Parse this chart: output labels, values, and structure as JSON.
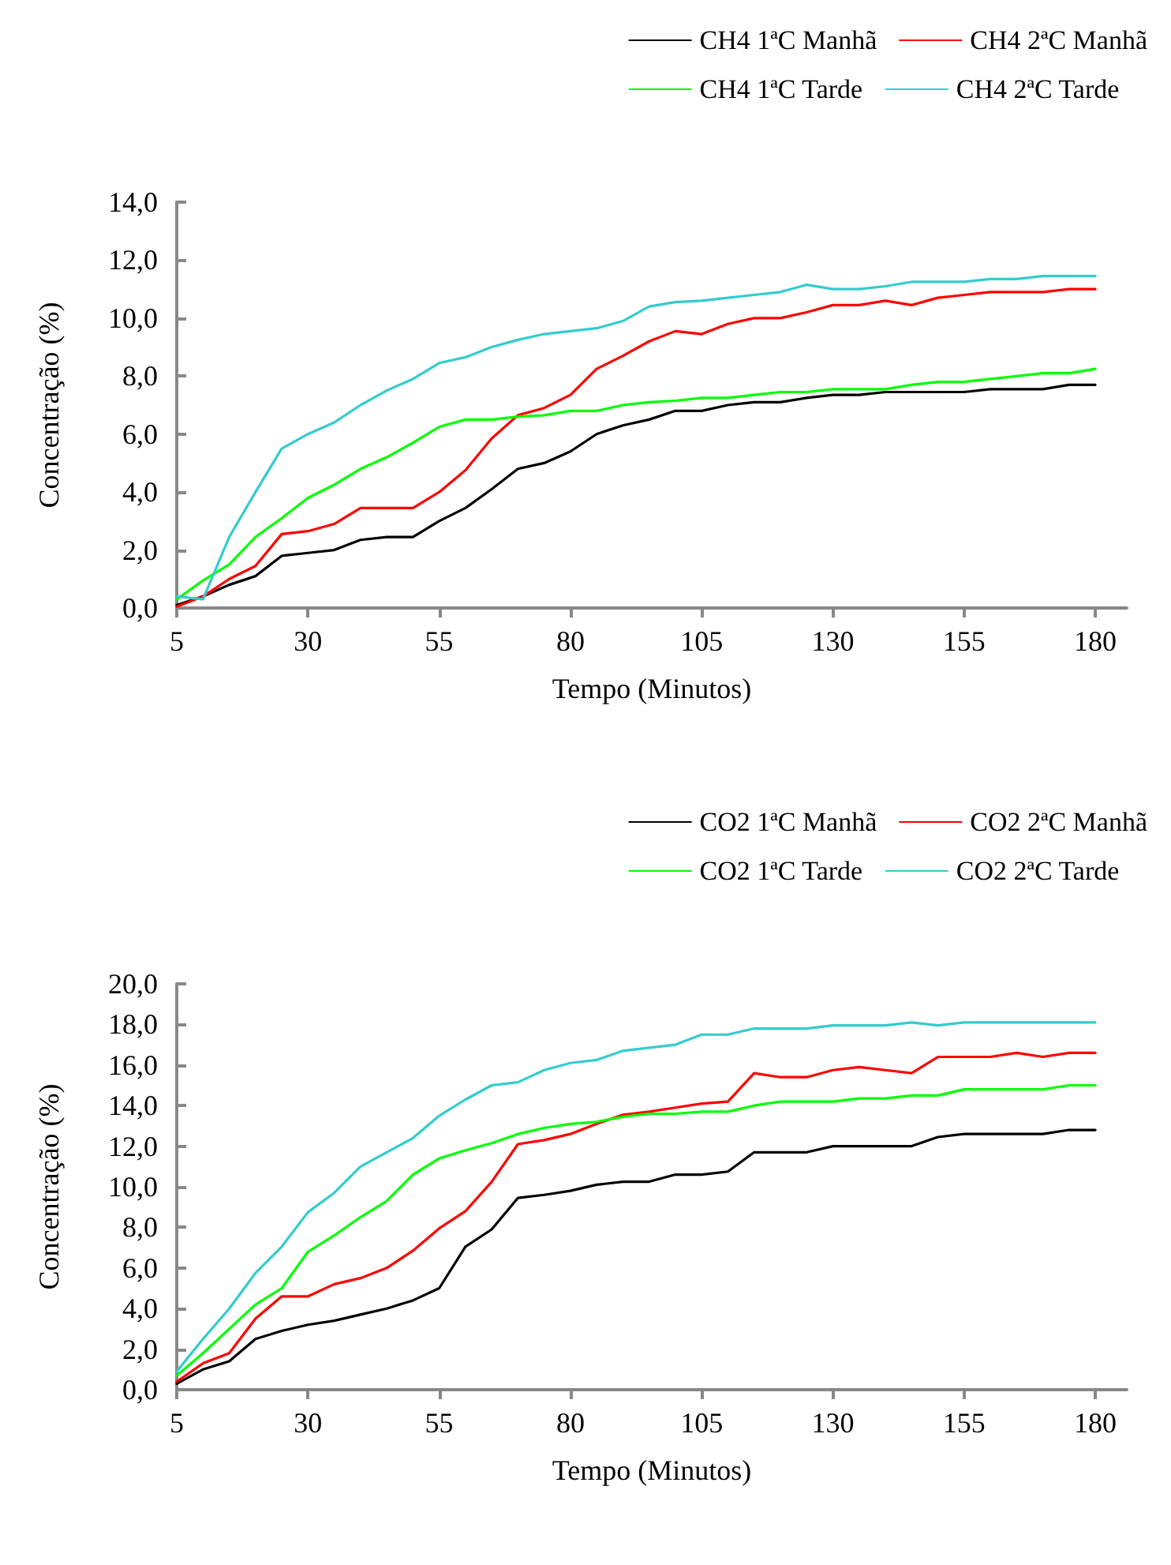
{
  "chart_data": [
    {
      "type": "line",
      "xlabel": "Tempo (Minutos)",
      "ylabel": "Concentração (%)",
      "x": [
        5,
        10,
        15,
        20,
        25,
        30,
        35,
        40,
        45,
        50,
        55,
        60,
        65,
        70,
        75,
        80,
        85,
        90,
        95,
        100,
        105,
        110,
        115,
        120,
        125,
        130,
        135,
        140,
        145,
        150,
        155,
        160,
        165,
        170,
        175,
        180
      ],
      "xlim": [
        5,
        186
      ],
      "xticks": [
        5,
        30,
        55,
        80,
        105,
        130,
        155,
        180
      ],
      "ylim": [
        0,
        14
      ],
      "yticks": [
        {
          "value": 0,
          "label": "0,0"
        },
        {
          "value": 2,
          "label": "2,0"
        },
        {
          "value": 4,
          "label": "4,0"
        },
        {
          "value": 6,
          "label": "6,0"
        },
        {
          "value": 8,
          "label": "8,0"
        },
        {
          "value": 10,
          "label": "10,0"
        },
        {
          "value": 12,
          "label": "12,0"
        },
        {
          "value": 14,
          "label": "14,0"
        }
      ],
      "grid": false,
      "legend": "top right",
      "marker": "none",
      "line_style": "solid",
      "series": [
        {
          "name": "CH4 1ªC Manhã",
          "color": "#000000",
          "values": [
            0.1,
            0.4,
            0.8,
            1.1,
            1.8,
            1.9,
            2.0,
            2.35,
            2.45,
            2.45,
            3.0,
            3.45,
            4.1,
            4.8,
            5.0,
            5.4,
            6.0,
            6.3,
            6.5,
            6.8,
            6.8,
            7.0,
            7.1,
            7.1,
            7.25,
            7.35,
            7.35,
            7.45,
            7.45,
            7.45,
            7.45,
            7.55,
            7.55,
            7.55,
            7.7,
            7.7
          ]
        },
        {
          "name": "CH4 2ªC Manhã",
          "color": "#ff0000",
          "values": [
            0.05,
            0.4,
            1.0,
            1.45,
            2.55,
            2.65,
            2.9,
            3.45,
            3.45,
            3.45,
            4.0,
            4.75,
            5.85,
            6.65,
            6.9,
            7.35,
            8.25,
            8.7,
            9.2,
            9.55,
            9.45,
            9.8,
            10.0,
            10.0,
            10.2,
            10.45,
            10.45,
            10.6,
            10.45,
            10.7,
            10.8,
            10.9,
            10.9,
            10.9,
            11.0,
            11.0
          ]
        },
        {
          "name": "CH4 1ªC Tarde",
          "color": "#00ff00",
          "values": [
            0.3,
            0.95,
            1.5,
            2.45,
            3.1,
            3.8,
            4.25,
            4.8,
            5.2,
            5.7,
            6.25,
            6.5,
            6.5,
            6.6,
            6.65,
            6.8,
            6.8,
            7.0,
            7.1,
            7.15,
            7.25,
            7.25,
            7.35,
            7.45,
            7.45,
            7.55,
            7.55,
            7.55,
            7.7,
            7.8,
            7.8,
            7.9,
            8.0,
            8.1,
            8.1,
            8.25
          ]
        },
        {
          "name": "CH4 2ªC Tarde",
          "color": "#33cccc",
          "values": [
            0.4,
            0.3,
            2.45,
            4.0,
            5.5,
            6.0,
            6.4,
            7.0,
            7.5,
            7.9,
            8.45,
            8.65,
            9.0,
            9.25,
            9.45,
            9.55,
            9.65,
            9.9,
            10.4,
            10.55,
            10.6,
            10.7,
            10.8,
            10.9,
            11.15,
            11.0,
            11.0,
            11.1,
            11.25,
            11.25,
            11.25,
            11.35,
            11.35,
            11.45,
            11.45,
            11.45
          ]
        }
      ]
    },
    {
      "type": "line",
      "xlabel": "Tempo (Minutos)",
      "ylabel": "Concentração (%)",
      "x": [
        5,
        10,
        15,
        20,
        25,
        30,
        35,
        40,
        45,
        50,
        55,
        60,
        65,
        70,
        75,
        80,
        85,
        90,
        95,
        100,
        105,
        110,
        115,
        120,
        125,
        130,
        135,
        140,
        145,
        150,
        155,
        160,
        165,
        170,
        175,
        180
      ],
      "xlim": [
        5,
        186
      ],
      "xticks": [
        5,
        30,
        55,
        80,
        105,
        130,
        155,
        180
      ],
      "ylim": [
        0,
        20
      ],
      "yticks": [
        {
          "value": 0,
          "label": "0,0"
        },
        {
          "value": 2,
          "label": "2,0"
        },
        {
          "value": 4,
          "label": "4,0"
        },
        {
          "value": 6,
          "label": "6,0"
        },
        {
          "value": 8,
          "label": "8,0"
        },
        {
          "value": 10,
          "label": "10,0"
        },
        {
          "value": 12,
          "label": "12,0"
        },
        {
          "value": 14,
          "label": "14,0"
        },
        {
          "value": 16,
          "label": "16,0"
        },
        {
          "value": 18,
          "label": "18,0"
        },
        {
          "value": 20,
          "label": "20,0"
        }
      ],
      "grid": false,
      "legend": "top right",
      "marker": "none",
      "line_style": "solid",
      "series": [
        {
          "name": "CO2 1ªC Manhã",
          "color": "#000000",
          "values": [
            0.3,
            1.0,
            1.4,
            2.5,
            2.9,
            3.2,
            3.4,
            3.7,
            4.0,
            4.4,
            5.0,
            7.05,
            7.9,
            9.45,
            9.6,
            9.8,
            10.1,
            10.25,
            10.25,
            10.6,
            10.6,
            10.75,
            11.7,
            11.7,
            11.7,
            12.0,
            12.0,
            12.0,
            12.0,
            12.45,
            12.6,
            12.6,
            12.6,
            12.6,
            12.8,
            12.8
          ]
        },
        {
          "name": "CO2 2ªC Manhã",
          "color": "#ff0000",
          "values": [
            0.4,
            1.3,
            1.8,
            3.5,
            4.6,
            4.6,
            5.2,
            5.5,
            6.0,
            6.85,
            7.95,
            8.8,
            10.25,
            12.1,
            12.3,
            12.6,
            13.1,
            13.55,
            13.7,
            13.9,
            14.1,
            14.2,
            15.6,
            15.4,
            15.4,
            15.75,
            15.9,
            15.75,
            15.6,
            16.4,
            16.4,
            16.4,
            16.6,
            16.4,
            16.6,
            16.6
          ]
        },
        {
          "name": "CO2 1ªC Tarde",
          "color": "#00ff00",
          "values": [
            0.7,
            1.8,
            3.0,
            4.2,
            5.0,
            6.8,
            7.6,
            8.5,
            9.3,
            10.6,
            11.4,
            11.8,
            12.15,
            12.6,
            12.9,
            13.1,
            13.2,
            13.45,
            13.6,
            13.6,
            13.7,
            13.7,
            14.0,
            14.2,
            14.2,
            14.2,
            14.35,
            14.35,
            14.5,
            14.5,
            14.8,
            14.8,
            14.8,
            14.8,
            15.0,
            15.0
          ]
        },
        {
          "name": "CO2 2ªC Tarde",
          "color": "#33cccc",
          "values": [
            0.9,
            2.5,
            4.0,
            5.75,
            7.05,
            8.75,
            9.7,
            11.0,
            11.7,
            12.4,
            13.5,
            14.3,
            15.0,
            15.15,
            15.75,
            16.1,
            16.25,
            16.7,
            16.85,
            17.0,
            17.5,
            17.5,
            17.8,
            17.8,
            17.8,
            17.95,
            17.95,
            17.95,
            18.1,
            17.95,
            18.1,
            18.1,
            18.1,
            18.1,
            18.1,
            18.1
          ]
        }
      ]
    }
  ]
}
